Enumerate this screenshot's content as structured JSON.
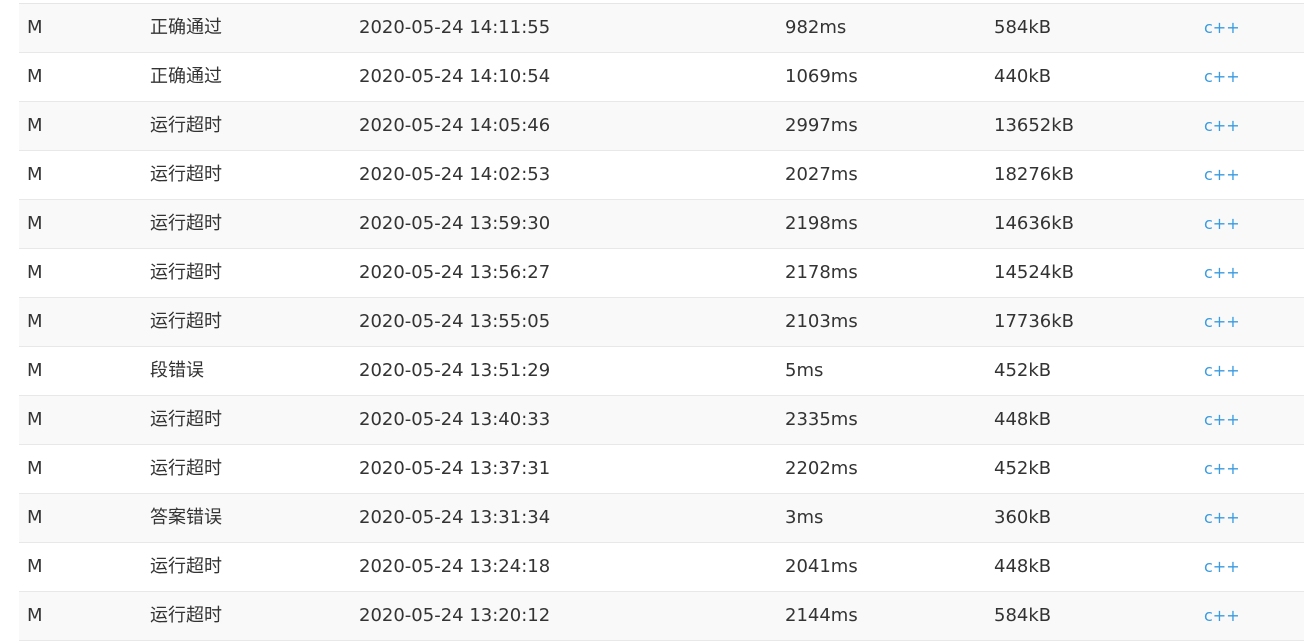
{
  "submissions": [
    {
      "problem": "M",
      "status": "正确通过",
      "submit_time": "2020-05-24 14:11:55",
      "runtime": "982ms",
      "memory": "584kB",
      "language": "c++"
    },
    {
      "problem": "M",
      "status": "正确通过",
      "submit_time": "2020-05-24 14:10:54",
      "runtime": "1069ms",
      "memory": "440kB",
      "language": "c++"
    },
    {
      "problem": "M",
      "status": "运行超时",
      "submit_time": "2020-05-24 14:05:46",
      "runtime": "2997ms",
      "memory": "13652kB",
      "language": "c++"
    },
    {
      "problem": "M",
      "status": "运行超时",
      "submit_time": "2020-05-24 14:02:53",
      "runtime": "2027ms",
      "memory": "18276kB",
      "language": "c++"
    },
    {
      "problem": "M",
      "status": "运行超时",
      "submit_time": "2020-05-24 13:59:30",
      "runtime": "2198ms",
      "memory": "14636kB",
      "language": "c++"
    },
    {
      "problem": "M",
      "status": "运行超时",
      "submit_time": "2020-05-24 13:56:27",
      "runtime": "2178ms",
      "memory": "14524kB",
      "language": "c++"
    },
    {
      "problem": "M",
      "status": "运行超时",
      "submit_time": "2020-05-24 13:55:05",
      "runtime": "2103ms",
      "memory": "17736kB",
      "language": "c++"
    },
    {
      "problem": "M",
      "status": "段错误",
      "submit_time": "2020-05-24 13:51:29",
      "runtime": "5ms",
      "memory": "452kB",
      "language": "c++"
    },
    {
      "problem": "M",
      "status": "运行超时",
      "submit_time": "2020-05-24 13:40:33",
      "runtime": "2335ms",
      "memory": "448kB",
      "language": "c++"
    },
    {
      "problem": "M",
      "status": "运行超时",
      "submit_time": "2020-05-24 13:37:31",
      "runtime": "2202ms",
      "memory": "452kB",
      "language": "c++"
    },
    {
      "problem": "M",
      "status": "答案错误",
      "submit_time": "2020-05-24 13:31:34",
      "runtime": "3ms",
      "memory": "360kB",
      "language": "c++"
    },
    {
      "problem": "M",
      "status": "运行超时",
      "submit_time": "2020-05-24 13:24:18",
      "runtime": "2041ms",
      "memory": "448kB",
      "language": "c++"
    },
    {
      "problem": "M",
      "status": "运行超时",
      "submit_time": "2020-05-24 13:20:12",
      "runtime": "2144ms",
      "memory": "584kB",
      "language": "c++"
    }
  ],
  "colors": {
    "link": "#3a9be0",
    "row_alt": "#f9f9f9",
    "border": "#e8e8e8",
    "text": "#333333"
  }
}
